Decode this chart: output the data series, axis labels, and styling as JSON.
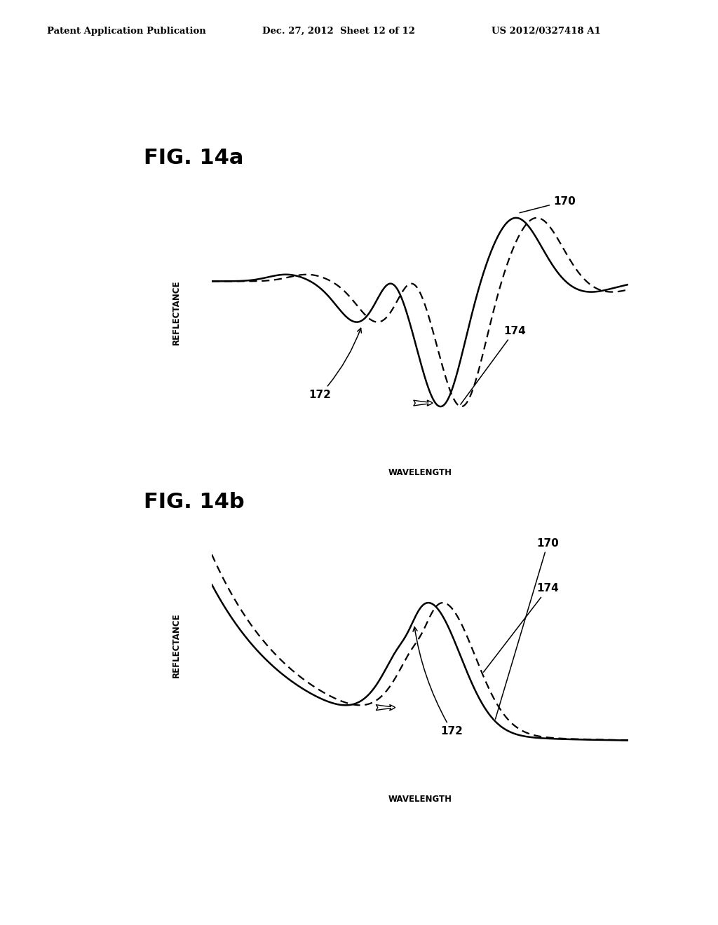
{
  "header_left": "Patent Application Publication",
  "header_mid": "Dec. 27, 2012  Sheet 12 of 12",
  "header_right": "US 2012/0327418 A1",
  "fig_a_title": "FIG. 14a",
  "fig_b_title": "FIG. 14b",
  "ylabel": "REFLECTANCE",
  "xlabel": "WAVELENGTH",
  "label_170": "170",
  "label_172": "172",
  "label_174": "174",
  "bg": "#ffffff",
  "lw": 1.8,
  "dlw": 1.6
}
